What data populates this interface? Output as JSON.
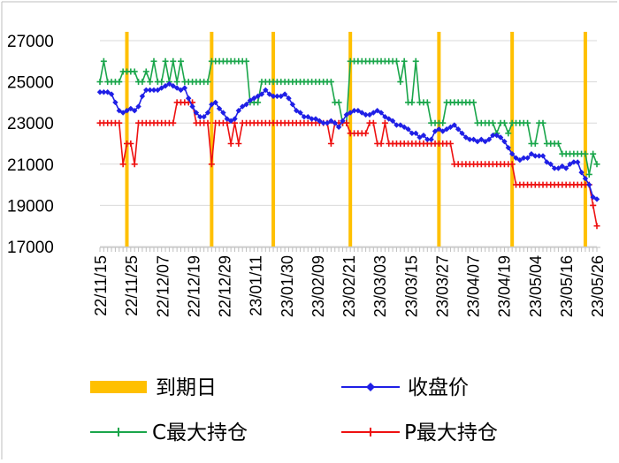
{
  "colors": {
    "expiry": "#FFC000",
    "close": "#1F1FE6",
    "c_max": "#1AA64B",
    "p_max": "#EE1111",
    "grid": "#d9d9d9"
  },
  "legend": {
    "expiry": "到期日",
    "close": "收盘价",
    "c_max": "C最大持仓",
    "p_max": "P最大持仓"
  },
  "chart_data": {
    "type": "line",
    "ylim": [
      17000,
      27000
    ],
    "yticks": [
      "27000",
      "25000",
      "23000",
      "21000",
      "19000",
      "17000"
    ],
    "x_tick_labels": [
      "22/11/15",
      "22/11/25",
      "22/12/07",
      "22/12/19",
      "22/12/29",
      "23/01/11",
      "23/01/30",
      "23/02/09",
      "23/02/21",
      "23/03/03",
      "23/03/15",
      "23/03/27",
      "23/04/07",
      "23/04/19",
      "23/05/04",
      "23/05/16",
      "23/05/26"
    ],
    "n_points": 130,
    "expiry_indices": [
      7,
      29,
      45,
      65,
      88,
      107,
      126
    ],
    "series": [
      {
        "key": "close",
        "name": "收盘价",
        "values": [
          24500,
          24500,
          24500,
          24400,
          24000,
          23600,
          23500,
          23600,
          23700,
          23600,
          23800,
          24300,
          24600,
          24600,
          24600,
          24600,
          24700,
          24800,
          24900,
          24800,
          24700,
          24600,
          24700,
          24200,
          23800,
          23500,
          23300,
          23300,
          23500,
          23900,
          24000,
          23700,
          23500,
          23200,
          23100,
          23200,
          23600,
          23800,
          23900,
          24100,
          24200,
          24300,
          24400,
          24600,
          24400,
          24300,
          24300,
          24300,
          24400,
          24200,
          23900,
          23600,
          23500,
          23300,
          23300,
          23200,
          23200,
          23100,
          23000,
          23000,
          23100,
          23000,
          22800,
          23100,
          23400,
          23500,
          23600,
          23600,
          23500,
          23400,
          23400,
          23500,
          23600,
          23500,
          23300,
          23200,
          23100,
          22900,
          22900,
          22800,
          22700,
          22500,
          22500,
          22300,
          22400,
          22200,
          22200,
          22600,
          22700,
          22600,
          22700,
          22800,
          22900,
          22700,
          22500,
          22300,
          22200,
          22200,
          22100,
          22200,
          22100,
          22200,
          22400,
          22400,
          22300,
          22100,
          21800,
          21500,
          21300,
          21200,
          21300,
          21300,
          21500,
          21400,
          21400,
          21400,
          21100,
          21000,
          20800,
          20800,
          20900,
          20800,
          21000,
          21100,
          21100,
          20600,
          20300,
          20000,
          19400,
          19300
        ]
      },
      {
        "key": "c_max",
        "name": "C最大持仓",
        "values": [
          25000,
          26000,
          25000,
          25000,
          25000,
          25000,
          25500,
          25500,
          25500,
          25500,
          25000,
          25000,
          25500,
          25000,
          26000,
          25000,
          25000,
          26000,
          25000,
          26000,
          25000,
          26000,
          25000,
          25000,
          25000,
          25000,
          25000,
          25000,
          25000,
          26000,
          26000,
          26000,
          26000,
          26000,
          26000,
          26000,
          26000,
          26000,
          26000,
          24000,
          24000,
          24000,
          25000,
          25000,
          25000,
          25000,
          25000,
          25000,
          25000,
          25000,
          25000,
          25000,
          25000,
          25000,
          25000,
          25000,
          25000,
          25000,
          25000,
          25000,
          25000,
          24000,
          24000,
          23000,
          23000,
          26000,
          26000,
          26000,
          26000,
          26000,
          26000,
          26000,
          26000,
          26000,
          26000,
          26000,
          26000,
          26000,
          25000,
          26000,
          24000,
          24000,
          26000,
          24000,
          24000,
          24000,
          23000,
          23000,
          23000,
          23000,
          24000,
          24000,
          24000,
          24000,
          24000,
          24000,
          24000,
          24000,
          23000,
          23000,
          23000,
          23000,
          23000,
          22500,
          23000,
          23000,
          22500,
          23000,
          23000,
          23000,
          23000,
          23000,
          22000,
          22000,
          23000,
          23000,
          22000,
          22000,
          22000,
          22000,
          21500,
          21500,
          21500,
          21500,
          21500,
          21500,
          21500,
          20500,
          21500,
          21000
        ]
      },
      {
        "key": "p_max",
        "name": "P最大持仓",
        "values": [
          23000,
          23000,
          23000,
          23000,
          23000,
          23000,
          21000,
          22000,
          22000,
          21000,
          23000,
          23000,
          23000,
          23000,
          23000,
          23000,
          23000,
          23000,
          23000,
          23000,
          24000,
          24000,
          24000,
          24000,
          24000,
          23000,
          23000,
          23000,
          23000,
          21000,
          23000,
          23000,
          23000,
          23000,
          22000,
          23000,
          22000,
          23000,
          23000,
          23000,
          23000,
          23000,
          23000,
          23000,
          23000,
          23000,
          23000,
          23000,
          23000,
          23000,
          23000,
          23000,
          23000,
          23000,
          23000,
          23000,
          23000,
          23000,
          23000,
          23000,
          22000,
          23000,
          23000,
          23000,
          23000,
          22500,
          22500,
          22500,
          22500,
          22500,
          23000,
          23000,
          22000,
          22000,
          23000,
          22000,
          22000,
          22000,
          22000,
          22000,
          22000,
          22000,
          22000,
          22000,
          22000,
          22000,
          22000,
          22000,
          22000,
          22000,
          22000,
          22000,
          21000,
          21000,
          21000,
          21000,
          21000,
          21000,
          21000,
          21000,
          21000,
          21000,
          21000,
          21000,
          21000,
          21000,
          21000,
          21000,
          20000,
          20000,
          20000,
          20000,
          20000,
          20000,
          20000,
          20000,
          20000,
          20000,
          20000,
          20000,
          20000,
          20000,
          20000,
          20000,
          20000,
          20000,
          20000,
          20000,
          19000,
          18000
        ]
      }
    ]
  }
}
